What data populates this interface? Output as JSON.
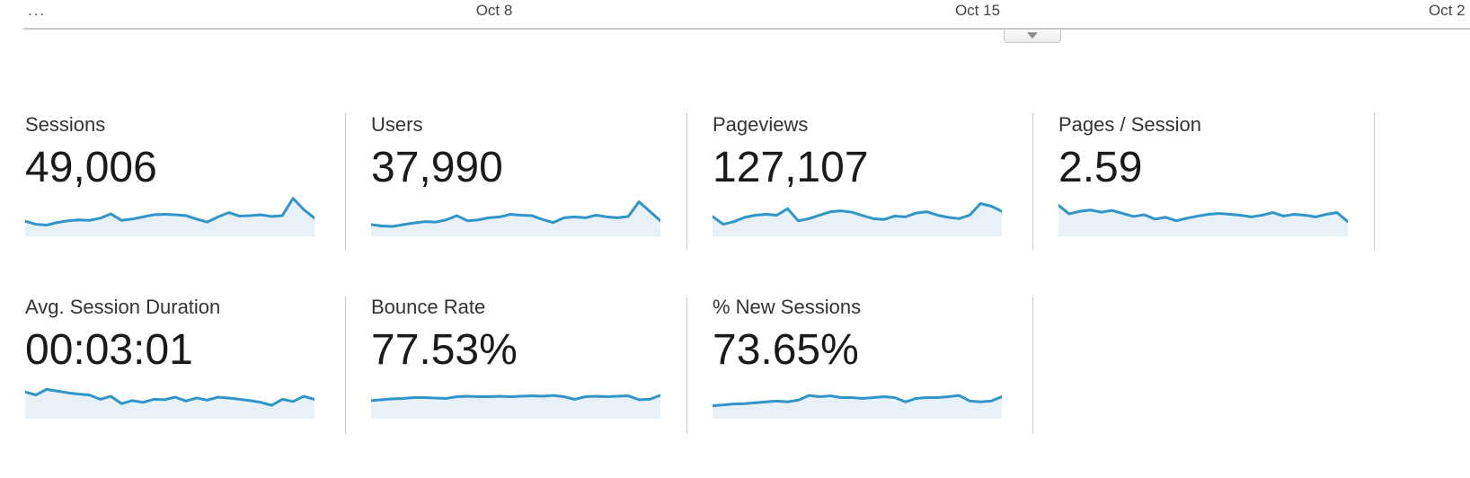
{
  "timeline": {
    "truncated_tick": "...",
    "ticks": [
      "Oct 8",
      "Oct 15",
      "Oct 2"
    ]
  },
  "collapse_tab": {
    "icon": "triangle-down"
  },
  "colors": {
    "spark_stroke": "#3095c8",
    "spark_fill": "#e8f1f8",
    "divider": "#cccccc",
    "axis_text": "#444444",
    "label_text": "#333333",
    "value_text": "#1a1a1a"
  },
  "cards": [
    {
      "label": "Sessions",
      "value": "49,006",
      "spark": [
        0.35,
        0.28,
        0.26,
        0.32,
        0.36,
        0.38,
        0.37,
        0.42,
        0.52,
        0.37,
        0.4,
        0.45,
        0.5,
        0.51,
        0.5,
        0.48,
        0.4,
        0.33,
        0.45,
        0.55,
        0.47,
        0.48,
        0.5,
        0.46,
        0.48,
        0.88,
        0.62,
        0.42
      ]
    },
    {
      "label": "Users",
      "value": "37,990",
      "spark": [
        0.27,
        0.24,
        0.23,
        0.27,
        0.31,
        0.34,
        0.33,
        0.38,
        0.48,
        0.36,
        0.38,
        0.43,
        0.45,
        0.51,
        0.49,
        0.48,
        0.39,
        0.32,
        0.43,
        0.45,
        0.43,
        0.49,
        0.45,
        0.43,
        0.46,
        0.8,
        0.58,
        0.36
      ]
    },
    {
      "label": "Pageviews",
      "value": "127,107",
      "spark": [
        0.46,
        0.28,
        0.34,
        0.44,
        0.49,
        0.51,
        0.49,
        0.64,
        0.36,
        0.41,
        0.49,
        0.57,
        0.59,
        0.56,
        0.48,
        0.41,
        0.39,
        0.47,
        0.45,
        0.54,
        0.57,
        0.49,
        0.44,
        0.41,
        0.49,
        0.76,
        0.7,
        0.58
      ]
    },
    {
      "label": "Pages / Session",
      "value": "2.59",
      "spark": [
        0.72,
        0.52,
        0.58,
        0.61,
        0.56,
        0.6,
        0.53,
        0.46,
        0.5,
        0.4,
        0.44,
        0.36,
        0.42,
        0.47,
        0.51,
        0.53,
        0.51,
        0.49,
        0.45,
        0.49,
        0.55,
        0.47,
        0.51,
        0.49,
        0.45,
        0.51,
        0.55,
        0.34
      ]
    },
    {
      "label": "Avg. Session Duration",
      "value": "00:03:01",
      "spark": [
        0.62,
        0.55,
        0.68,
        0.64,
        0.6,
        0.57,
        0.55,
        0.45,
        0.52,
        0.35,
        0.42,
        0.38,
        0.45,
        0.44,
        0.5,
        0.41,
        0.48,
        0.43,
        0.5,
        0.48,
        0.45,
        0.42,
        0.38,
        0.31,
        0.45,
        0.4,
        0.52,
        0.45
      ]
    },
    {
      "label": "Bounce Rate",
      "value": "77.53%",
      "spark": [
        0.42,
        0.44,
        0.46,
        0.47,
        0.49,
        0.49,
        0.48,
        0.47,
        0.51,
        0.52,
        0.51,
        0.51,
        0.52,
        0.51,
        0.52,
        0.53,
        0.52,
        0.54,
        0.51,
        0.45,
        0.51,
        0.52,
        0.51,
        0.52,
        0.53,
        0.44,
        0.45,
        0.54
      ]
    },
    {
      "label": "% New Sessions",
      "value": "73.65%",
      "spark": [
        0.3,
        0.32,
        0.34,
        0.35,
        0.37,
        0.39,
        0.41,
        0.39,
        0.43,
        0.54,
        0.51,
        0.53,
        0.49,
        0.49,
        0.47,
        0.49,
        0.51,
        0.49,
        0.39,
        0.47,
        0.49,
        0.49,
        0.51,
        0.54,
        0.41,
        0.39,
        0.41,
        0.51
      ]
    }
  ]
}
